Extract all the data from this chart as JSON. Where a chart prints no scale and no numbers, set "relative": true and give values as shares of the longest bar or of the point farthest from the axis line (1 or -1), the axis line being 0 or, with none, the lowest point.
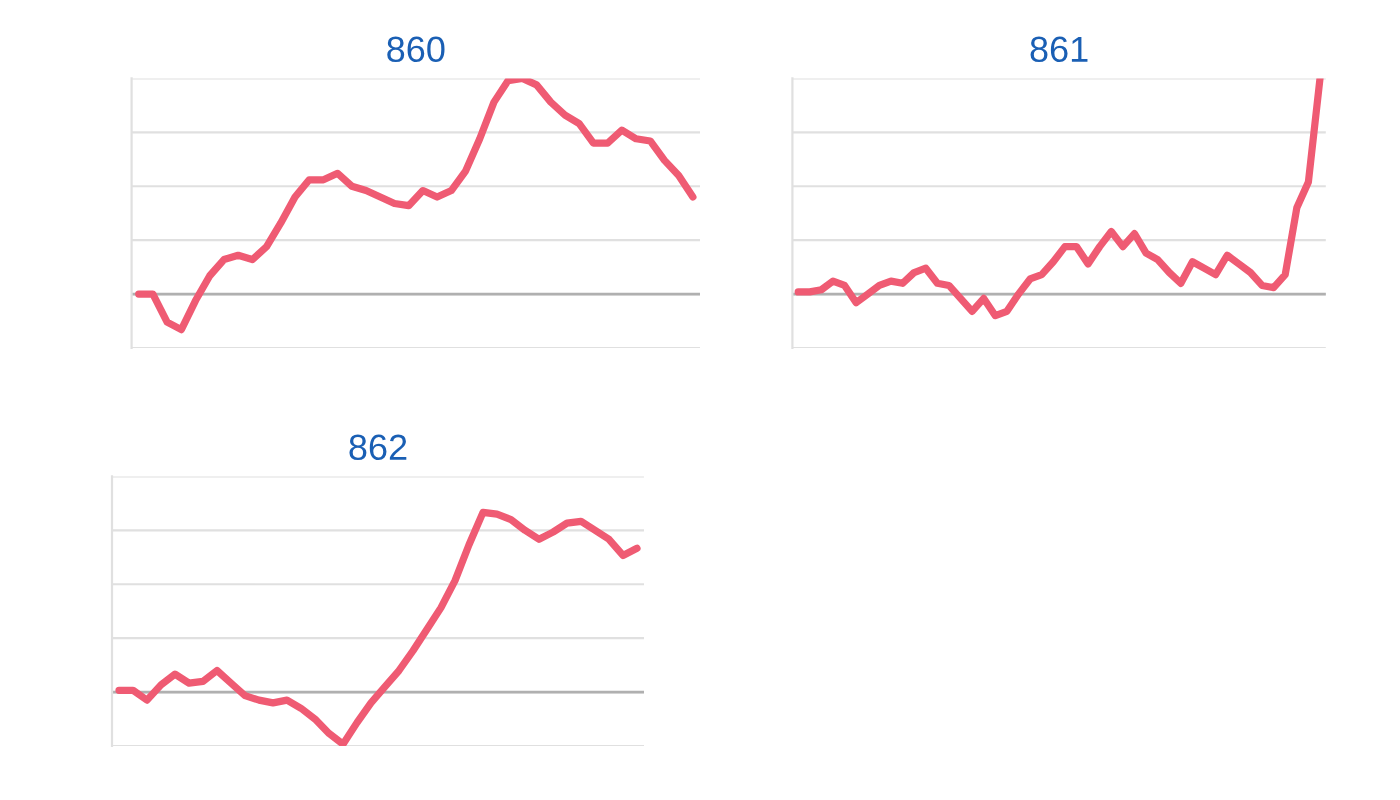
{
  "chart_data": [
    {
      "type": "line",
      "title": "860",
      "relative": true,
      "grid": "y",
      "categories": [
        null,
        null,
        null,
        null,
        null,
        null,
        null,
        null,
        null,
        null,
        null,
        null,
        null,
        null,
        null,
        null,
        null,
        null,
        null,
        null,
        null,
        null,
        null,
        null,
        null,
        null,
        null,
        null,
        null,
        null,
        null,
        null,
        null,
        null,
        null,
        null,
        null,
        null,
        null,
        null
      ],
      "series": [
        {
          "color": "#ef5b73",
          "values": [
            0,
            0,
            -0.13,
            -0.165,
            -0.03,
            0.085,
            0.16,
            0.18,
            0.16,
            0.22,
            0.33,
            0.45,
            0.53,
            0.53,
            0.56,
            0.5,
            0.48,
            0.45,
            0.42,
            0.41,
            0.48,
            0.45,
            0.48,
            0.57,
            0.72,
            0.89,
            0.99,
            1.0,
            0.97,
            0.89,
            0.83,
            0.79,
            0.7,
            0.7,
            0.76,
            0.72,
            0.71,
            0.62,
            0.55,
            0.45
          ]
        }
      ]
    },
    {
      "type": "line",
      "title": "861",
      "relative": true,
      "grid": "y",
      "categories": [
        null,
        null,
        null,
        null,
        null,
        null,
        null,
        null,
        null,
        null,
        null,
        null,
        null,
        null,
        null,
        null,
        null,
        null,
        null,
        null,
        null,
        null,
        null,
        null,
        null,
        null,
        null,
        null,
        null,
        null,
        null,
        null,
        null,
        null,
        null,
        null,
        null,
        null,
        null,
        null,
        null,
        null,
        null,
        null,
        null,
        null
      ],
      "series": [
        {
          "color": "#ef5b73",
          "values": [
            0.01,
            0.01,
            0.02,
            0.06,
            0.04,
            -0.04,
            0,
            0.04,
            0.06,
            0.05,
            0.1,
            0.12,
            0.05,
            0.04,
            -0.02,
            -0.08,
            -0.02,
            -0.1,
            -0.08,
            0,
            0.07,
            0.09,
            0.15,
            0.22,
            0.22,
            0.14,
            0.22,
            0.29,
            0.22,
            0.28,
            0.19,
            0.16,
            0.1,
            0.05,
            0.15,
            0.12,
            0.09,
            0.18,
            0.14,
            0.1,
            0.04,
            0.03,
            0.09,
            0.4,
            0.52,
            1.0
          ]
        }
      ]
    },
    {
      "type": "line",
      "title": "862",
      "relative": true,
      "grid": "y",
      "categories": [
        null,
        null,
        null,
        null,
        null,
        null,
        null,
        null,
        null,
        null,
        null,
        null,
        null,
        null,
        null,
        null,
        null,
        null,
        null,
        null,
        null,
        null,
        null,
        null,
        null,
        null,
        null,
        null,
        null,
        null,
        null,
        null,
        null,
        null,
        null,
        null,
        null,
        null
      ],
      "series": [
        {
          "color": "#ef5b73",
          "values": [
            0.01,
            0.01,
            -0.045,
            0.04,
            0.1,
            0.05,
            0.06,
            0.12,
            0.05,
            -0.02,
            -0.045,
            -0.06,
            -0.045,
            -0.09,
            -0.15,
            -0.23,
            -0.29,
            -0.17,
            -0.06,
            0.03,
            0.12,
            0.23,
            0.35,
            0.47,
            0.62,
            0.82,
            1.0,
            0.99,
            0.96,
            0.9,
            0.85,
            0.89,
            0.94,
            0.95,
            0.9,
            0.85,
            0.76,
            0.8
          ]
        }
      ]
    }
  ]
}
